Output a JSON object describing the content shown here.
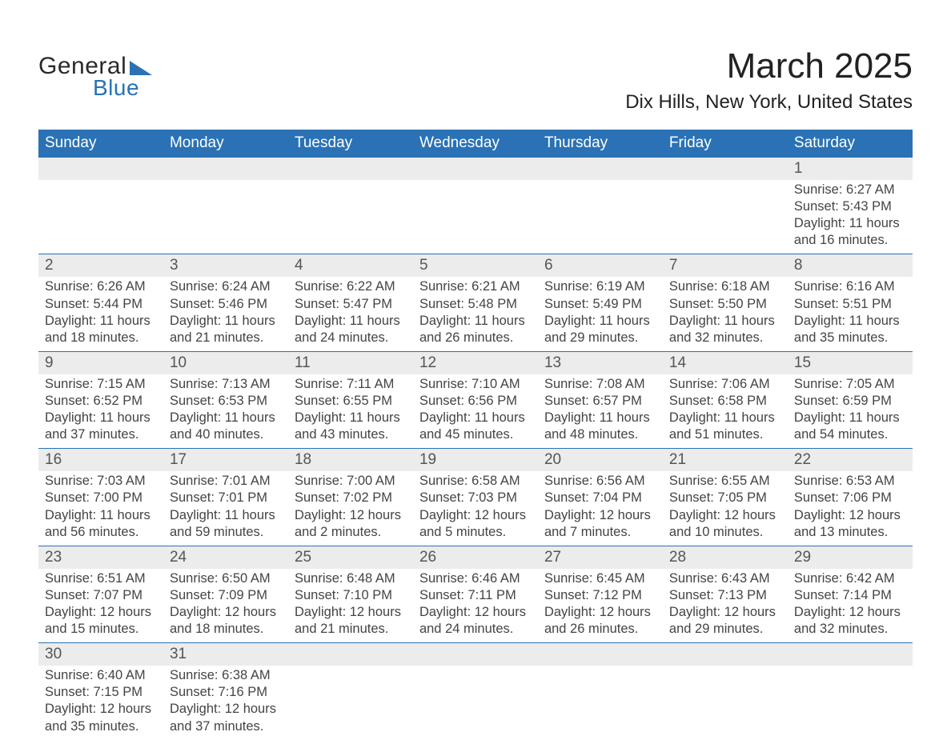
{
  "logo": {
    "text_general": "General",
    "text_blue": "Blue",
    "color_blue": "#2a72b5",
    "color_dark": "#2a2a2a"
  },
  "title": {
    "month": "March 2025",
    "location": "Dix Hills, New York, United States"
  },
  "colors": {
    "header_bg": "#2a72b5",
    "header_text": "#ffffff",
    "daynum_bg": "#ececec",
    "daynum_text": "#555555",
    "body_text": "#444444",
    "row_border": "#2a72b5",
    "page_bg": "#ffffff"
  },
  "typography": {
    "title_fontsize": 44,
    "location_fontsize": 24,
    "header_fontsize": 19,
    "daynum_fontsize": 19,
    "details_fontsize": 16.5,
    "font_family": "Arial"
  },
  "days_of_week": [
    "Sunday",
    "Monday",
    "Tuesday",
    "Wednesday",
    "Thursday",
    "Friday",
    "Saturday"
  ],
  "weeks": [
    [
      null,
      null,
      null,
      null,
      null,
      null,
      {
        "n": "1",
        "sunrise": "Sunrise: 6:27 AM",
        "sunset": "Sunset: 5:43 PM",
        "daylight1": "Daylight: 11 hours",
        "daylight2": "and 16 minutes."
      }
    ],
    [
      {
        "n": "2",
        "sunrise": "Sunrise: 6:26 AM",
        "sunset": "Sunset: 5:44 PM",
        "daylight1": "Daylight: 11 hours",
        "daylight2": "and 18 minutes."
      },
      {
        "n": "3",
        "sunrise": "Sunrise: 6:24 AM",
        "sunset": "Sunset: 5:46 PM",
        "daylight1": "Daylight: 11 hours",
        "daylight2": "and 21 minutes."
      },
      {
        "n": "4",
        "sunrise": "Sunrise: 6:22 AM",
        "sunset": "Sunset: 5:47 PM",
        "daylight1": "Daylight: 11 hours",
        "daylight2": "and 24 minutes."
      },
      {
        "n": "5",
        "sunrise": "Sunrise: 6:21 AM",
        "sunset": "Sunset: 5:48 PM",
        "daylight1": "Daylight: 11 hours",
        "daylight2": "and 26 minutes."
      },
      {
        "n": "6",
        "sunrise": "Sunrise: 6:19 AM",
        "sunset": "Sunset: 5:49 PM",
        "daylight1": "Daylight: 11 hours",
        "daylight2": "and 29 minutes."
      },
      {
        "n": "7",
        "sunrise": "Sunrise: 6:18 AM",
        "sunset": "Sunset: 5:50 PM",
        "daylight1": "Daylight: 11 hours",
        "daylight2": "and 32 minutes."
      },
      {
        "n": "8",
        "sunrise": "Sunrise: 6:16 AM",
        "sunset": "Sunset: 5:51 PM",
        "daylight1": "Daylight: 11 hours",
        "daylight2": "and 35 minutes."
      }
    ],
    [
      {
        "n": "9",
        "sunrise": "Sunrise: 7:15 AM",
        "sunset": "Sunset: 6:52 PM",
        "daylight1": "Daylight: 11 hours",
        "daylight2": "and 37 minutes."
      },
      {
        "n": "10",
        "sunrise": "Sunrise: 7:13 AM",
        "sunset": "Sunset: 6:53 PM",
        "daylight1": "Daylight: 11 hours",
        "daylight2": "and 40 minutes."
      },
      {
        "n": "11",
        "sunrise": "Sunrise: 7:11 AM",
        "sunset": "Sunset: 6:55 PM",
        "daylight1": "Daylight: 11 hours",
        "daylight2": "and 43 minutes."
      },
      {
        "n": "12",
        "sunrise": "Sunrise: 7:10 AM",
        "sunset": "Sunset: 6:56 PM",
        "daylight1": "Daylight: 11 hours",
        "daylight2": "and 45 minutes."
      },
      {
        "n": "13",
        "sunrise": "Sunrise: 7:08 AM",
        "sunset": "Sunset: 6:57 PM",
        "daylight1": "Daylight: 11 hours",
        "daylight2": "and 48 minutes."
      },
      {
        "n": "14",
        "sunrise": "Sunrise: 7:06 AM",
        "sunset": "Sunset: 6:58 PM",
        "daylight1": "Daylight: 11 hours",
        "daylight2": "and 51 minutes."
      },
      {
        "n": "15",
        "sunrise": "Sunrise: 7:05 AM",
        "sunset": "Sunset: 6:59 PM",
        "daylight1": "Daylight: 11 hours",
        "daylight2": "and 54 minutes."
      }
    ],
    [
      {
        "n": "16",
        "sunrise": "Sunrise: 7:03 AM",
        "sunset": "Sunset: 7:00 PM",
        "daylight1": "Daylight: 11 hours",
        "daylight2": "and 56 minutes."
      },
      {
        "n": "17",
        "sunrise": "Sunrise: 7:01 AM",
        "sunset": "Sunset: 7:01 PM",
        "daylight1": "Daylight: 11 hours",
        "daylight2": "and 59 minutes."
      },
      {
        "n": "18",
        "sunrise": "Sunrise: 7:00 AM",
        "sunset": "Sunset: 7:02 PM",
        "daylight1": "Daylight: 12 hours",
        "daylight2": "and 2 minutes."
      },
      {
        "n": "19",
        "sunrise": "Sunrise: 6:58 AM",
        "sunset": "Sunset: 7:03 PM",
        "daylight1": "Daylight: 12 hours",
        "daylight2": "and 5 minutes."
      },
      {
        "n": "20",
        "sunrise": "Sunrise: 6:56 AM",
        "sunset": "Sunset: 7:04 PM",
        "daylight1": "Daylight: 12 hours",
        "daylight2": "and 7 minutes."
      },
      {
        "n": "21",
        "sunrise": "Sunrise: 6:55 AM",
        "sunset": "Sunset: 7:05 PM",
        "daylight1": "Daylight: 12 hours",
        "daylight2": "and 10 minutes."
      },
      {
        "n": "22",
        "sunrise": "Sunrise: 6:53 AM",
        "sunset": "Sunset: 7:06 PM",
        "daylight1": "Daylight: 12 hours",
        "daylight2": "and 13 minutes."
      }
    ],
    [
      {
        "n": "23",
        "sunrise": "Sunrise: 6:51 AM",
        "sunset": "Sunset: 7:07 PM",
        "daylight1": "Daylight: 12 hours",
        "daylight2": "and 15 minutes."
      },
      {
        "n": "24",
        "sunrise": "Sunrise: 6:50 AM",
        "sunset": "Sunset: 7:09 PM",
        "daylight1": "Daylight: 12 hours",
        "daylight2": "and 18 minutes."
      },
      {
        "n": "25",
        "sunrise": "Sunrise: 6:48 AM",
        "sunset": "Sunset: 7:10 PM",
        "daylight1": "Daylight: 12 hours",
        "daylight2": "and 21 minutes."
      },
      {
        "n": "26",
        "sunrise": "Sunrise: 6:46 AM",
        "sunset": "Sunset: 7:11 PM",
        "daylight1": "Daylight: 12 hours",
        "daylight2": "and 24 minutes."
      },
      {
        "n": "27",
        "sunrise": "Sunrise: 6:45 AM",
        "sunset": "Sunset: 7:12 PM",
        "daylight1": "Daylight: 12 hours",
        "daylight2": "and 26 minutes."
      },
      {
        "n": "28",
        "sunrise": "Sunrise: 6:43 AM",
        "sunset": "Sunset: 7:13 PM",
        "daylight1": "Daylight: 12 hours",
        "daylight2": "and 29 minutes."
      },
      {
        "n": "29",
        "sunrise": "Sunrise: 6:42 AM",
        "sunset": "Sunset: 7:14 PM",
        "daylight1": "Daylight: 12 hours",
        "daylight2": "and 32 minutes."
      }
    ],
    [
      {
        "n": "30",
        "sunrise": "Sunrise: 6:40 AM",
        "sunset": "Sunset: 7:15 PM",
        "daylight1": "Daylight: 12 hours",
        "daylight2": "and 35 minutes."
      },
      {
        "n": "31",
        "sunrise": "Sunrise: 6:38 AM",
        "sunset": "Sunset: 7:16 PM",
        "daylight1": "Daylight: 12 hours",
        "daylight2": "and 37 minutes."
      },
      null,
      null,
      null,
      null,
      null
    ]
  ]
}
